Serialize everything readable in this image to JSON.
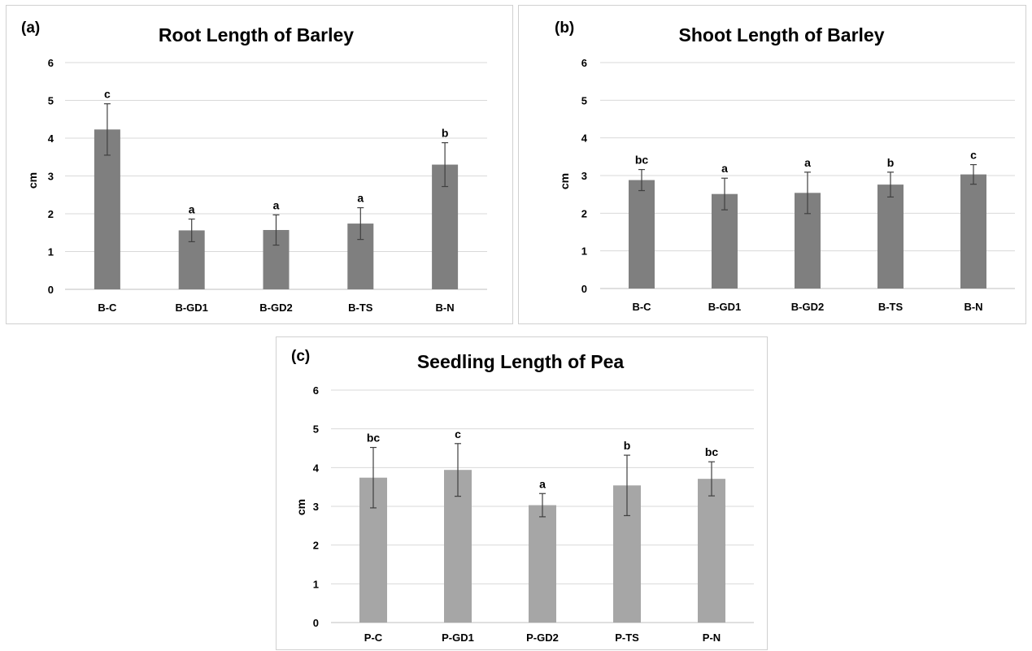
{
  "chart_data": [
    {
      "type": "bar",
      "panel_label": "(a)",
      "title": "Root Length of Barley",
      "ylabel": "cm",
      "xlabel": "",
      "ylim": [
        0,
        6
      ],
      "yticks": [
        "0",
        "1",
        "2",
        "3",
        "4",
        "5",
        "6"
      ],
      "categories": [
        "B-C",
        "B-GD1",
        "B-GD2",
        "B-TS",
        "B-N"
      ],
      "values": [
        4.23,
        1.56,
        1.57,
        1.74,
        3.3
      ],
      "errors": [
        0.68,
        0.3,
        0.4,
        0.42,
        0.58
      ],
      "letters": [
        "c",
        "a",
        "a",
        "a",
        "b"
      ],
      "bar_color": "#7f7f7f",
      "grid": true
    },
    {
      "type": "bar",
      "panel_label": "(b)",
      "title": "Shoot Length of Barley",
      "ylabel": "cm",
      "xlabel": "",
      "ylim": [
        0,
        6
      ],
      "yticks": [
        "0",
        "1",
        "2",
        "3",
        "4",
        "5",
        "6"
      ],
      "categories": [
        "B-C",
        "B-GD1",
        "B-GD2",
        "B-TS",
        "B-N"
      ],
      "values": [
        2.88,
        2.51,
        2.54,
        2.76,
        3.03
      ],
      "errors": [
        0.28,
        0.42,
        0.55,
        0.33,
        0.26
      ],
      "letters": [
        "bc",
        "a",
        "a",
        "b",
        "c"
      ],
      "bar_color": "#7f7f7f",
      "grid": true
    },
    {
      "type": "bar",
      "panel_label": "(c)",
      "title": "Seedling Length of Pea",
      "ylabel": "cm",
      "xlabel": "",
      "ylim": [
        0,
        6
      ],
      "yticks": [
        "0",
        "1",
        "2",
        "3",
        "4",
        "5",
        "6"
      ],
      "categories": [
        "P-C",
        "P-GD1",
        "P-GD2",
        "P-TS",
        "P-N"
      ],
      "values": [
        3.74,
        3.94,
        3.03,
        3.54,
        3.71
      ],
      "errors": [
        0.78,
        0.68,
        0.3,
        0.78,
        0.44
      ],
      "letters": [
        "bc",
        "c",
        "a",
        "b",
        "bc"
      ],
      "bar_color": "#a6a6a6",
      "grid": true
    }
  ]
}
